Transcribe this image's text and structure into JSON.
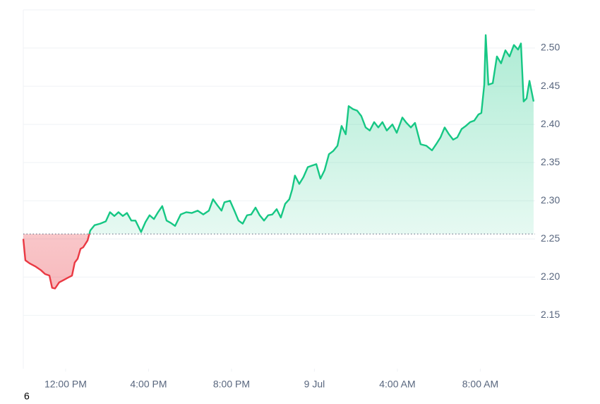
{
  "chart_data": {
    "type": "line",
    "x": [
      -2.04,
      -1.94,
      -1.74,
      -1.46,
      -1.19,
      -0.99,
      -0.78,
      -0.65,
      -0.51,
      -0.31,
      -0.1,
      0.1,
      0.31,
      0.44,
      0.58,
      0.72,
      0.85,
      1.06,
      1.19,
      1.4,
      1.67,
      1.94,
      2.14,
      2.35,
      2.55,
      2.76,
      2.96,
      3.17,
      3.37,
      3.64,
      3.85,
      4.05,
      4.26,
      4.46,
      4.66,
      4.87,
      5.07,
      5.28,
      5.55,
      5.82,
      6.09,
      6.37,
      6.64,
      6.91,
      7.11,
      7.32,
      7.52,
      7.66,
      7.93,
      8.14,
      8.34,
      8.54,
      8.75,
      8.95,
      9.16,
      9.36,
      9.57,
      9.77,
      9.97,
      10.18,
      10.38,
      10.59,
      10.79,
      10.93,
      11.06,
      11.27,
      11.47,
      11.68,
      11.88,
      12.09,
      12.29,
      12.49,
      12.7,
      12.9,
      13.11,
      13.31,
      13.51,
      13.65,
      13.86,
      14.06,
      14.26,
      14.47,
      14.67,
      14.88,
      15.08,
      15.28,
      15.49,
      15.76,
      15.97,
      16.24,
      16.44,
      16.65,
      16.85,
      17.12,
      17.4,
      17.67,
      17.87,
      18.08,
      18.28,
      18.49,
      18.69,
      18.89,
      19.1,
      19.3,
      19.51,
      19.71,
      19.91,
      20.05,
      20.19,
      20.26,
      20.39,
      20.6,
      20.8,
      21.0,
      21.21,
      21.41,
      21.62,
      21.82,
      21.96,
      22.09,
      22.23,
      22.37,
      22.57
    ],
    "series": [
      {
        "color": "#16c784",
        "down_color": "#ea3943",
        "values": [
          2.25,
          2.222,
          2.218,
          2.214,
          2.209,
          2.204,
          2.202,
          2.186,
          2.185,
          2.193,
          2.196,
          2.199,
          2.202,
          2.219,
          2.224,
          2.237,
          2.239,
          2.248,
          2.261,
          2.268,
          2.27,
          2.273,
          2.285,
          2.28,
          2.285,
          2.28,
          2.284,
          2.274,
          2.274,
          2.259,
          2.272,
          2.281,
          2.276,
          2.285,
          2.293,
          2.274,
          2.271,
          2.267,
          2.282,
          2.285,
          2.284,
          2.287,
          2.282,
          2.287,
          2.302,
          2.294,
          2.287,
          2.298,
          2.3,
          2.287,
          2.274,
          2.27,
          2.281,
          2.282,
          2.291,
          2.281,
          2.274,
          2.281,
          2.282,
          2.289,
          2.278,
          2.296,
          2.302,
          2.315,
          2.333,
          2.322,
          2.331,
          2.344,
          2.346,
          2.348,
          2.329,
          2.34,
          2.361,
          2.365,
          2.372,
          2.398,
          2.387,
          2.424,
          2.42,
          2.418,
          2.411,
          2.396,
          2.392,
          2.403,
          2.396,
          2.403,
          2.392,
          2.4,
          2.389,
          2.409,
          2.402,
          2.396,
          2.402,
          2.374,
          2.372,
          2.366,
          2.374,
          2.383,
          2.396,
          2.387,
          2.38,
          2.383,
          2.394,
          2.398,
          2.403,
          2.405,
          2.413,
          2.415,
          2.452,
          2.517,
          2.452,
          2.454,
          2.489,
          2.48,
          2.497,
          2.489,
          2.504,
          2.498,
          2.506,
          2.43,
          2.434,
          2.457,
          2.43
        ]
      }
    ],
    "baseline": 2.2565,
    "xlim": [
      -2.04,
      22.64
    ],
    "xticks": [
      {
        "value": 0,
        "label": "12:00 PM"
      },
      {
        "value": 4,
        "label": "4:00 PM"
      },
      {
        "value": 8,
        "label": "8:00 PM"
      },
      {
        "value": 12,
        "label": "9 Jul"
      },
      {
        "value": 16,
        "label": "4:00 AM"
      },
      {
        "value": 20,
        "label": "8:00 AM"
      }
    ],
    "ylim": [
      2.08,
      2.55
    ],
    "yticks": [
      {
        "value": 2.15,
        "label": "2.15"
      },
      {
        "value": 2.2,
        "label": "2.20"
      },
      {
        "value": 2.25,
        "label": "2.25"
      },
      {
        "value": 2.3,
        "label": "2.30"
      },
      {
        "value": 2.35,
        "label": "2.35"
      },
      {
        "value": 2.4,
        "label": "2.40"
      },
      {
        "value": 2.45,
        "label": "2.45"
      },
      {
        "value": 2.5,
        "label": "2.50"
      }
    ],
    "grid": true,
    "footnote": "6"
  }
}
